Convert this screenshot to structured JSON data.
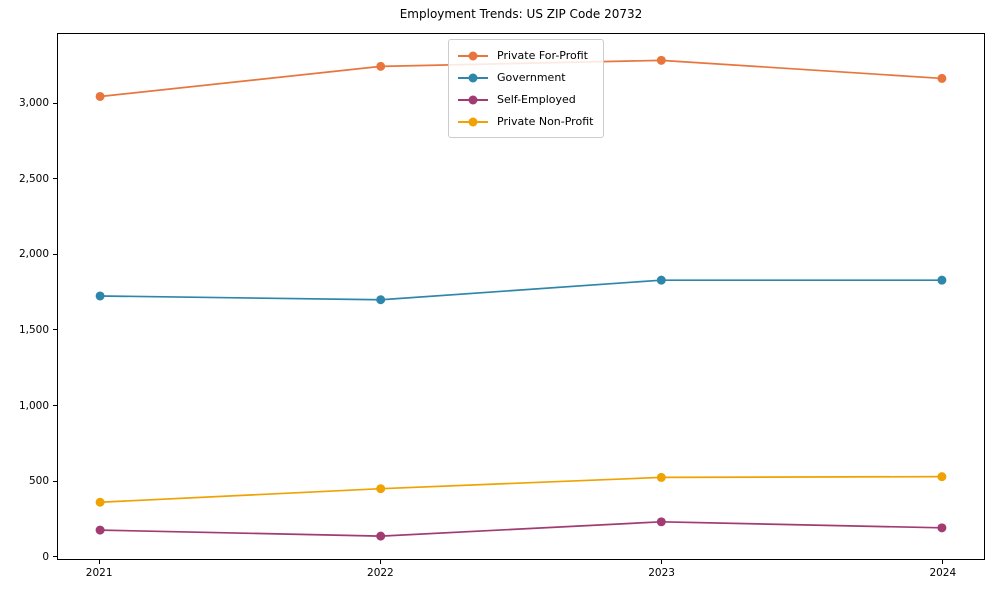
{
  "title": "Employment Trends: US ZIP Code 20732",
  "chart_data": {
    "type": "line",
    "title": "Employment Trends: US ZIP Code 20732",
    "xlabel": "",
    "ylabel": "",
    "x": [
      2021,
      2022,
      2023,
      2024
    ],
    "x_tick_labels": [
      "2021",
      "2022",
      "2023",
      "2024"
    ],
    "y_ticks": [
      0,
      500,
      1000,
      1500,
      2000,
      2500,
      3000
    ],
    "y_tick_labels": [
      "0",
      "500",
      "1,000",
      "1,500",
      "2,000",
      "2,500",
      "3,000"
    ],
    "xlim": [
      2020.85,
      2024.15
    ],
    "ylim": [
      -22,
      3465
    ],
    "grid": false,
    "legend_position": "upper center",
    "marker": "circle",
    "series": [
      {
        "name": "Private For-Profit",
        "color": "#E8763C",
        "values": [
          3050,
          3250,
          3290,
          3170
        ]
      },
      {
        "name": "Government",
        "color": "#2E86AB",
        "values": [
          1725,
          1700,
          1830,
          1830
        ]
      },
      {
        "name": "Self-Employed",
        "color": "#A23B72",
        "values": [
          170,
          130,
          225,
          185
        ]
      },
      {
        "name": "Private Non-Profit",
        "color": "#F0A202",
        "values": [
          355,
          445,
          520,
          525
        ]
      }
    ]
  }
}
